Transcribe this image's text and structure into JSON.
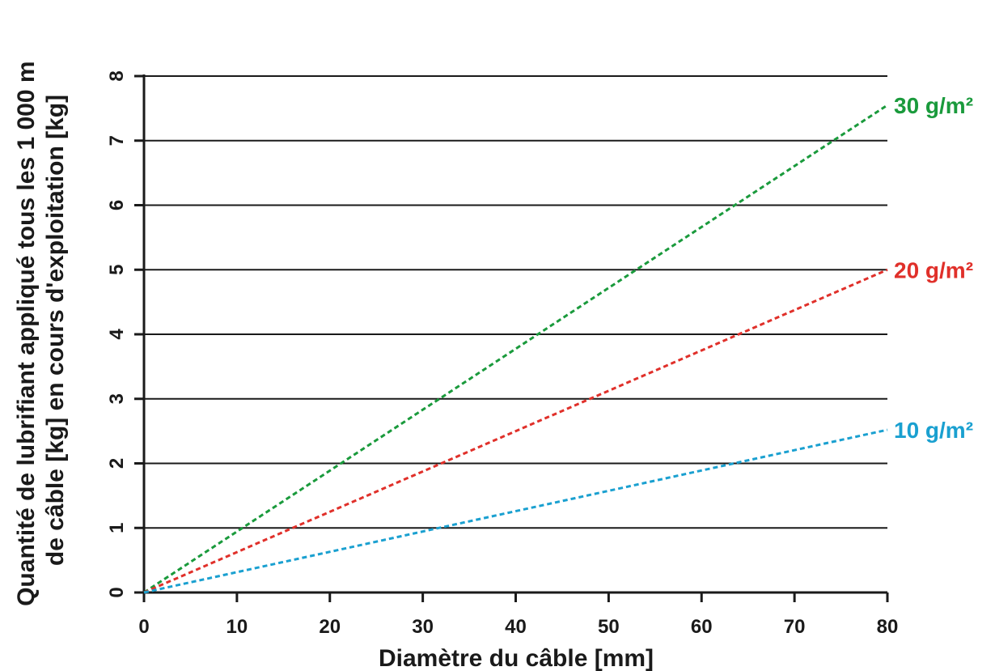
{
  "chart_data": {
    "type": "line",
    "xlabel": "Diamètre du câble [mm]",
    "ylabel_lines": [
      "Quantité de lubrifiant appliqué tous les 1 000 m",
      "de câble [kg] en cours d'exploitation [kg]"
    ],
    "xlim": [
      0,
      80
    ],
    "ylim": [
      0,
      8
    ],
    "x_ticks": [
      "0",
      "10",
      "20",
      "30",
      "40",
      "50",
      "60",
      "70",
      "80"
    ],
    "y_ticks": [
      "0",
      "1",
      "2",
      "3",
      "4",
      "5",
      "6",
      "7",
      "8"
    ],
    "grid": "horizontal",
    "series": [
      {
        "name": "30 g/m²",
        "color": "#1a9a3c",
        "x": [
          0,
          80
        ],
        "y": [
          0,
          7.55
        ]
      },
      {
        "name": "20 g/m²",
        "color": "#e0302a",
        "x": [
          0,
          80
        ],
        "y": [
          0,
          5.0
        ]
      },
      {
        "name": "10 g/m²",
        "color": "#1aa0d0",
        "x": [
          0,
          80
        ],
        "y": [
          0,
          2.52
        ]
      }
    ]
  }
}
